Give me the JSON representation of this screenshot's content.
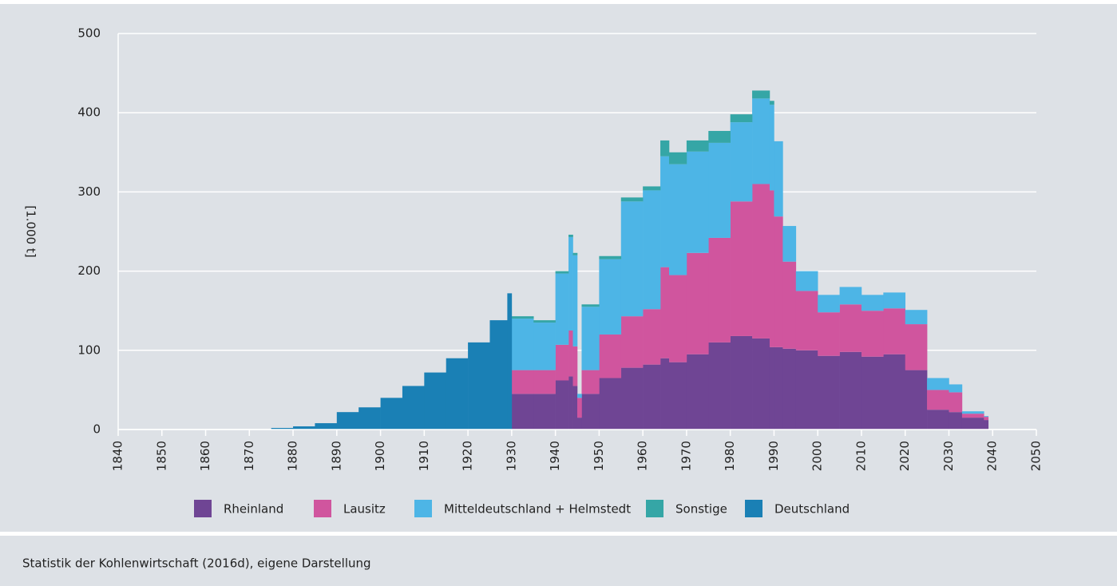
{
  "chart_data": {
    "type": "stacked-step-area",
    "ylabel": "[1.000 t]",
    "source": "Statistik der Kohlenwirtschaft (2016d), eigene Darstellung",
    "x": [
      1875,
      1880,
      1885,
      1890,
      1895,
      1900,
      1905,
      1910,
      1915,
      1920,
      1925,
      1929,
      1930,
      1935,
      1940,
      1943,
      1944,
      1945,
      1946,
      1950,
      1955,
      1960,
      1964,
      1966,
      1970,
      1975,
      1980,
      1985,
      1989,
      1990,
      1992,
      1995,
      2000,
      2005,
      2010,
      2015,
      2020,
      2025,
      2030,
      2033,
      2038
    ],
    "series": [
      {
        "name": "Rheinland",
        "color": "#6f4594",
        "values": [
          null,
          null,
          null,
          null,
          null,
          null,
          null,
          null,
          null,
          null,
          null,
          null,
          45,
          45,
          62,
          67,
          55,
          15,
          45,
          65,
          78,
          82,
          90,
          85,
          95,
          110,
          118,
          115,
          104,
          104,
          102,
          100,
          93,
          98,
          92,
          95,
          75,
          25,
          22,
          15,
          12
        ]
      },
      {
        "name": "Lausitz",
        "color": "#d0559e",
        "values": [
          null,
          null,
          null,
          null,
          null,
          null,
          null,
          null,
          null,
          null,
          null,
          null,
          30,
          30,
          45,
          58,
          50,
          25,
          30,
          55,
          65,
          70,
          115,
          110,
          128,
          132,
          170,
          195,
          198,
          165,
          110,
          75,
          55,
          60,
          58,
          58,
          58,
          25,
          25,
          5,
          4
        ]
      },
      {
        "name": "Mitteldeutschland + Helmstedt",
        "color": "#4db5e6",
        "values": [
          null,
          null,
          null,
          null,
          null,
          null,
          null,
          null,
          null,
          null,
          null,
          null,
          65,
          60,
          90,
          118,
          115,
          5,
          80,
          95,
          145,
          150,
          140,
          140,
          128,
          120,
          100,
          108,
          108,
          95,
          45,
          25,
          22,
          22,
          20,
          20,
          18,
          15,
          10,
          3,
          1
        ]
      },
      {
        "name": "Sonstige",
        "color": "#35a6a6",
        "values": [
          null,
          null,
          null,
          null,
          null,
          null,
          null,
          null,
          null,
          null,
          null,
          null,
          3,
          3,
          3,
          3,
          3,
          0,
          3,
          4,
          5,
          5,
          20,
          15,
          14,
          15,
          10,
          10,
          5,
          0,
          0,
          0,
          0,
          0,
          0,
          0,
          0,
          0,
          0,
          0,
          0
        ]
      },
      {
        "name": "Deutschland",
        "color": "#1a80b5",
        "values": [
          2,
          4,
          8,
          22,
          28,
          40,
          55,
          72,
          90,
          110,
          138,
          172,
          null,
          null,
          null,
          null,
          null,
          null,
          null,
          null,
          null,
          null,
          null,
          null,
          null,
          null,
          null,
          null,
          null,
          null,
          null,
          null,
          null,
          null,
          null,
          null,
          null,
          null,
          null,
          null,
          null
        ]
      }
    ],
    "xlim": [
      1840,
      2050
    ],
    "xticks": [
      1840,
      1850,
      1860,
      1870,
      1880,
      1890,
      1900,
      1910,
      1920,
      1930,
      1940,
      1950,
      1960,
      1970,
      1980,
      1990,
      2000,
      2010,
      2020,
      2030,
      2040,
      2050
    ],
    "ylim": [
      0,
      500
    ],
    "yticks": [
      0,
      100,
      200,
      300,
      400,
      500
    ],
    "grid": true
  }
}
